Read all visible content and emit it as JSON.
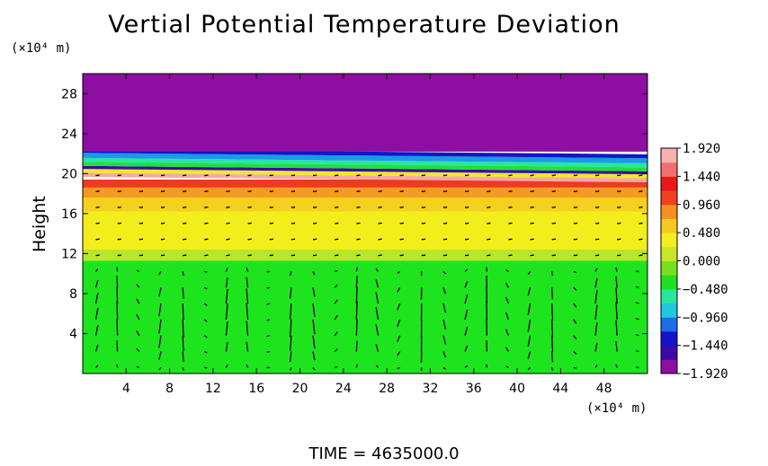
{
  "chart_data": {
    "type": "heatmap",
    "title": "Vertial Potential Temperature Deviation",
    "ylabel": "Height",
    "xlabel": "",
    "x_unit": "(×10⁴ m)",
    "y_unit": "(×10⁴ m)",
    "footer": "TIME  =  4635000.0",
    "xlim": [
      0,
      52
    ],
    "ylim": [
      0,
      30
    ],
    "x_ticks": [
      "4",
      "8",
      "12",
      "16",
      "20",
      "24",
      "28",
      "32",
      "36",
      "40",
      "44",
      "48"
    ],
    "x_tick_values": [
      4,
      8,
      12,
      16,
      20,
      24,
      28,
      32,
      36,
      40,
      44,
      48
    ],
    "y_ticks": [
      "4",
      "8",
      "12",
      "16",
      "20",
      "24",
      "28"
    ],
    "y_tick_values": [
      4,
      8,
      12,
      16,
      20,
      24,
      28
    ],
    "colorbar": {
      "min": -1.92,
      "max": 1.92,
      "labels": [
        "1.920",
        "1.440",
        "0.960",
        "0.480",
        "0.000",
        "−0.480",
        "−0.960",
        "−1.440",
        "−1.920"
      ],
      "label_values": [
        1.92,
        1.44,
        0.96,
        0.48,
        0.0,
        -0.48,
        -0.96,
        -1.44,
        -1.92
      ],
      "colors": [
        "#8e0ea3",
        "#3a0aa8",
        "#1414c8",
        "#1a6ee6",
        "#20c8e0",
        "#28e6a0",
        "#20e020",
        "#78e020",
        "#c8e628",
        "#f2ee20",
        "#f8c820",
        "#f69020",
        "#f04020",
        "#e81818",
        "#f07070",
        "#f8b0b0"
      ]
    },
    "layers": [
      {
        "y_from": 0,
        "y_to": 11.3,
        "value": 0.0,
        "color": "#1ee41e"
      },
      {
        "y_from": 11.3,
        "y_to": 12.4,
        "value": 0.3,
        "color": "#b8e62a"
      },
      {
        "y_from": 12.4,
        "y_to": 16.2,
        "value": 0.96,
        "color": "#f2ee1c"
      },
      {
        "y_from": 16.2,
        "y_to": 17.6,
        "value": 1.1,
        "color": "#f6d01e"
      },
      {
        "y_from": 17.6,
        "y_to": 18.6,
        "value": 1.3,
        "color": "#f49a22"
      },
      {
        "y_from": 18.6,
        "y_to": 19.4,
        "value": 1.6,
        "color": "#ee3a1e"
      },
      {
        "y_from": 19.4,
        "y_to": 19.8,
        "value": 1.92,
        "color": "#f4a8a8"
      },
      {
        "y_from": 19.8,
        "y_to": 20.2,
        "value": 0.6,
        "color": "#f0e828"
      },
      {
        "y_from": 20.2,
        "y_to": 20.5,
        "value": -1.4,
        "color": "#3a0aa8"
      },
      {
        "y_from": 20.5,
        "y_to": 20.9,
        "value": 0.1,
        "color": "#20e038"
      },
      {
        "y_from": 20.9,
        "y_to": 21.3,
        "value": -0.4,
        "color": "#28e6a0"
      },
      {
        "y_from": 21.3,
        "y_to": 21.8,
        "value": -0.9,
        "color": "#1a9ae6"
      },
      {
        "y_from": 21.8,
        "y_to": 22.2,
        "value": -1.4,
        "color": "#1414c8"
      },
      {
        "y_from": 22.2,
        "y_to": 30,
        "value": -1.92,
        "color": "#8e0ea3"
      }
    ],
    "vectors": {
      "x_spacing": 2.0,
      "y_spacing": 1.6,
      "x_start": 1.2,
      "y_start": 0.6,
      "cells": 5.7,
      "max_y": 21
    }
  }
}
